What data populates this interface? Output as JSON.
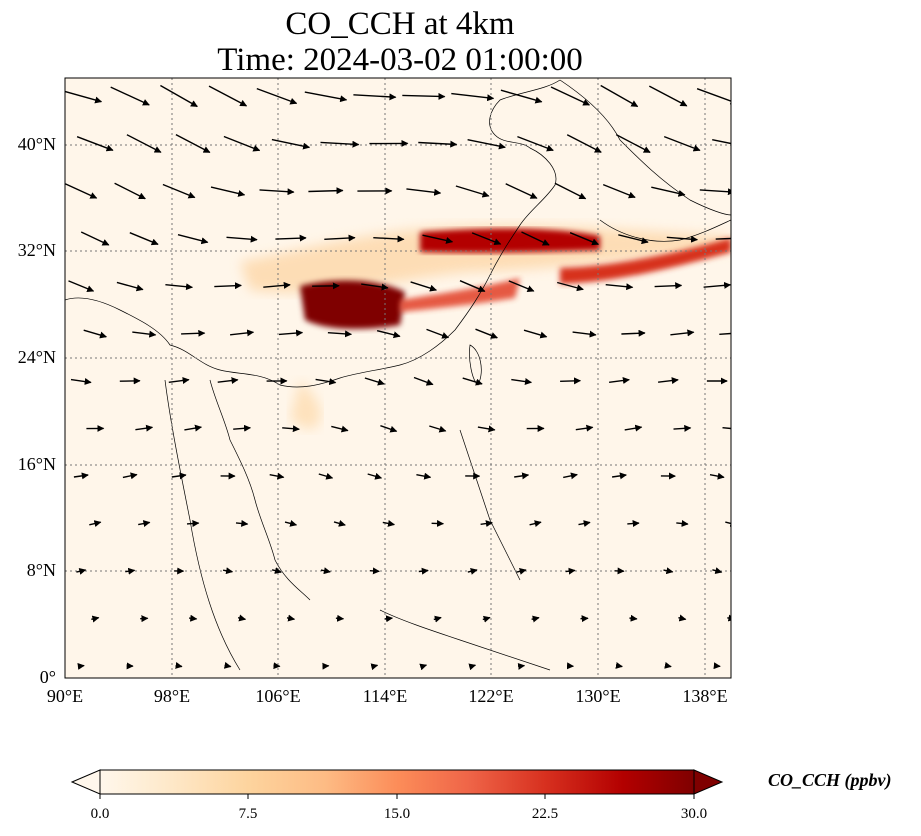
{
  "title": {
    "line1": "CO_CCH at 4km",
    "line2": "Time: 2024-03-02 01:00:00"
  },
  "map": {
    "lon_range": [
      90,
      140
    ],
    "lat_range": [
      0,
      45
    ],
    "projection": "PlateCarree",
    "gridlines": "dotted",
    "lon_ticks": [
      "90°E",
      "98°E",
      "106°E",
      "114°E",
      "122°E",
      "130°E",
      "138°E"
    ],
    "lat_ticks": [
      "0°",
      "8°N",
      "16°N",
      "24°N",
      "32°N",
      "40°N"
    ],
    "field": "CO_CCH",
    "vectors": "wind arrows"
  },
  "colorbar": {
    "label": "CO_CCH (ppbv)",
    "colormap": "OrRd",
    "range": [
      0,
      30
    ],
    "extend": "both",
    "ticks": [
      "0.0",
      "7.5",
      "15.0",
      "22.5",
      "30.0"
    ],
    "colors": [
      "#fff7ec",
      "#fee8c8",
      "#fdd49e",
      "#fdbb84",
      "#fc8d59",
      "#ef6548",
      "#d7301f",
      "#b30000",
      "#7f0000"
    ]
  }
}
